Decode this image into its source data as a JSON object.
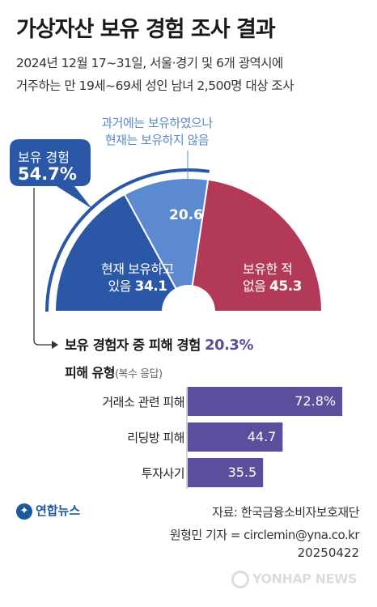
{
  "title": "가상자산 보유 경험 조사 결과",
  "subtitle_line1": "2024년 12월 17~31일, 서울·경기 및 6개 광역시에",
  "subtitle_line2": "거주하는 만 19세~69세 성인 남녀 2,500명 대상 조사",
  "ownership_bubble": {
    "label": "보유 경험",
    "value": "54.7%"
  },
  "past_owner_label_line1": "과거에는 보유하였으나",
  "past_owner_label_line2": "현재는 보유하지 않음",
  "damage_label": "보유 경험자 중 피해 경험",
  "damage_rate": "20.3%",
  "damage_type_label": "피해 유형",
  "damage_type_note": "(복수 응답)",
  "source": "자료: 한국금융소비자보호재단",
  "reporter": "원형민 기자 = circlemin@yna.co.kr",
  "date": "20250422",
  "logo_text": "연합뉴스",
  "watermark_text": "YONHAP NEWS",
  "colors": {
    "current": "#2a58a6",
    "past": "#5b8ad0",
    "never": "#b23a58",
    "bar": "#5c4e9c"
  },
  "chart_data": [
    {
      "type": "pie",
      "variant": "half-donut",
      "slices": [
        {
          "label_line1": "현재 보유하고",
          "label_line2": "있음",
          "value": 34.1,
          "value_text": "34.1",
          "color": "#2a58a6"
        },
        {
          "label_line1": "",
          "label_line2": "",
          "value": 20.6,
          "value_text": "20.6",
          "color": "#5b8ad0"
        },
        {
          "label_line1": "보유한 적",
          "label_line2": "없음",
          "value": 45.3,
          "value_text": "45.3",
          "color": "#b23a58"
        }
      ]
    },
    {
      "type": "bar",
      "orientation": "horizontal",
      "categories": [
        "거래소 관련 피해",
        "리딩방 피해",
        "투자사기"
      ],
      "values": [
        72.8,
        44.7,
        35.5
      ],
      "value_texts": [
        "72.8%",
        "44.7",
        "35.5"
      ],
      "xlim": [
        0,
        80
      ]
    }
  ]
}
